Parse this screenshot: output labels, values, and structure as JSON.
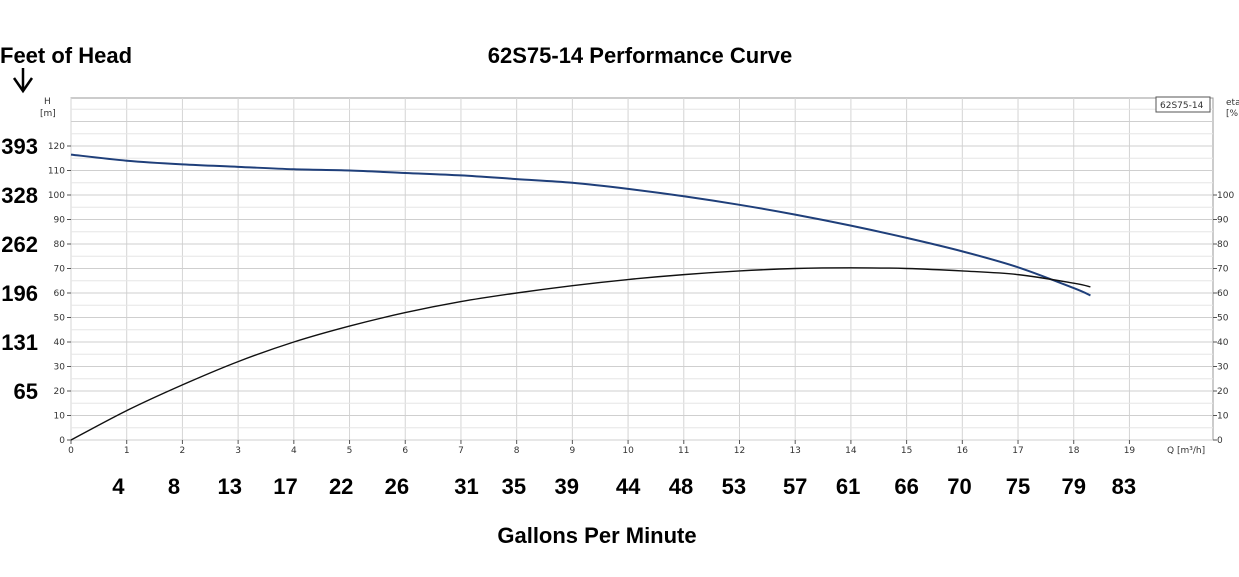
{
  "chart_data": {
    "type": "line",
    "title": "62S75-14 Performance Curve",
    "left_label": "Feet of Head",
    "bottom_label": "Gallons Per Minute",
    "y_axis_label": "H",
    "y_axis_unit": "[m]",
    "right_axis_label": "eta",
    "right_axis_unit": "[%",
    "x_axis_label": "Q [m³/h]",
    "legend_label": "62S75-14",
    "x_ticks": [
      0,
      1,
      2,
      3,
      4,
      5,
      6,
      7,
      8,
      9,
      10,
      11,
      12,
      13,
      14,
      15,
      16,
      17,
      18,
      19
    ],
    "y_ticks": [
      0,
      10,
      20,
      30,
      40,
      50,
      60,
      70,
      80,
      90,
      100,
      110,
      120
    ],
    "right_ticks": [
      0,
      10,
      20,
      30,
      40,
      50,
      60,
      70,
      80,
      90,
      100
    ],
    "xlim": [
      0,
      20.5
    ],
    "ylim": [
      0,
      140
    ],
    "feet_labels": [
      {
        "text": "393",
        "h": 120
      },
      {
        "text": "328",
        "h": 100
      },
      {
        "text": "262",
        "h": 80
      },
      {
        "text": "196",
        "h": 60
      },
      {
        "text": "131",
        "h": 40
      },
      {
        "text": "65",
        "h": 20
      }
    ],
    "gpm_labels": [
      {
        "text": "4",
        "q": 0.85
      },
      {
        "text": "8",
        "q": 1.85
      },
      {
        "text": "13",
        "q": 2.85
      },
      {
        "text": "17",
        "q": 3.85
      },
      {
        "text": "22",
        "q": 4.85
      },
      {
        "text": "26",
        "q": 5.85
      },
      {
        "text": "31",
        "q": 7.1
      },
      {
        "text": "35",
        "q": 7.95
      },
      {
        "text": "39",
        "q": 8.9
      },
      {
        "text": "44",
        "q": 10.0
      },
      {
        "text": "48",
        "q": 10.95
      },
      {
        "text": "53",
        "q": 11.9
      },
      {
        "text": "57",
        "q": 13.0
      },
      {
        "text": "61",
        "q": 13.95
      },
      {
        "text": "66",
        "q": 15.0
      },
      {
        "text": "70",
        "q": 15.95
      },
      {
        "text": "75",
        "q": 17.0
      },
      {
        "text": "79",
        "q": 18.0
      },
      {
        "text": "83",
        "q": 18.9
      }
    ],
    "series": [
      {
        "role": "head",
        "color": "#1f3f7a",
        "x": [
          0,
          1,
          2,
          3,
          4,
          5,
          6,
          7,
          8,
          9,
          10,
          11,
          12,
          13,
          14,
          15,
          16,
          17,
          18,
          18.3
        ],
        "y": [
          116.5,
          114,
          112.5,
          111.5,
          110.5,
          110,
          109,
          108,
          106.5,
          105,
          102.5,
          99.5,
          96,
          92,
          87.5,
          82.5,
          77,
          70.5,
          62,
          59
        ]
      },
      {
        "role": "efficiency",
        "color": "#111111",
        "x": [
          0,
          1,
          2,
          3,
          4,
          5,
          6,
          7,
          8,
          9,
          10,
          11,
          12,
          13,
          14,
          15,
          16,
          17,
          18,
          18.3
        ],
        "y": [
          0,
          12,
          22.5,
          32,
          40,
          46.5,
          52,
          56.5,
          60,
          63,
          65.5,
          67.5,
          69,
          70,
          70.3,
          70,
          69,
          67.5,
          64,
          62.5
        ]
      }
    ]
  }
}
